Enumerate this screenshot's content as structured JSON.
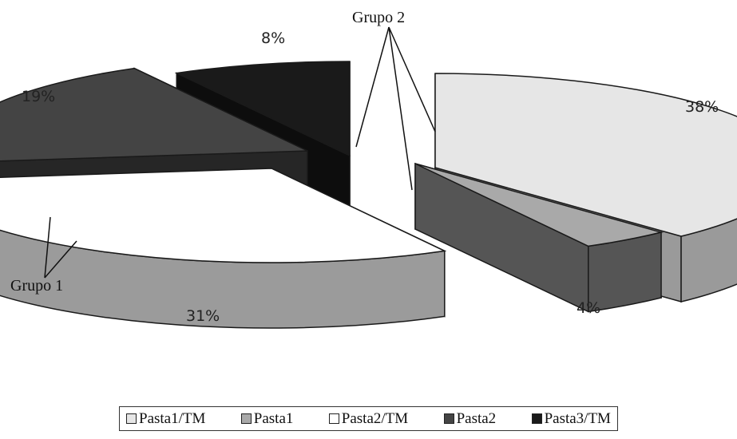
{
  "chart_data": {
    "type": "pie",
    "title": "",
    "slices": [
      {
        "name": "Pasta1/TM",
        "value": 38,
        "label": "38%",
        "color": "#e6e6e6",
        "side_color": "#9a9a9a"
      },
      {
        "name": "Pasta1",
        "value": 4,
        "label": "4%",
        "color": "#a9a9a9",
        "side_color": "#555555"
      },
      {
        "name": "Pasta2/TM",
        "value": 31,
        "label": "31%",
        "color": "#ffffff",
        "side_color": "#9b9b9b"
      },
      {
        "name": "Pasta2",
        "value": 19,
        "label": "19%",
        "color": "#444444",
        "side_color": "#262626"
      },
      {
        "name": "Pasta3/TM",
        "value": 8,
        "label": "8%",
        "color": "#1a1a1a",
        "side_color": "#0d0d0d"
      }
    ],
    "annotations": [
      {
        "text": "Grupo 1"
      },
      {
        "text": "Grupo 2"
      }
    ],
    "legend_position": "bottom",
    "style": "3d-exploded"
  }
}
